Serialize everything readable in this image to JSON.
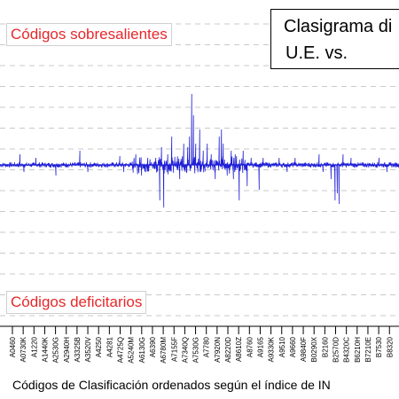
{
  "chart_data": {
    "type": "line",
    "title_lines": [
      "Clasigrama di",
      "U.E.   vs."
    ],
    "annotations": [
      "Códigos sobresalientes",
      "Códigos deficitarios"
    ],
    "xlabel": "Códigos de Clasificación ordenados según el índice de IN",
    "x_tick_labels": [
      "A0460",
      "A0730K",
      "A1220",
      "A1440K",
      "A2530G",
      "A2940H",
      "A3325B",
      "A3520V",
      "A4250",
      "A4281",
      "A4725Q",
      "A5240M",
      "A6130G",
      "A6390",
      "A6780M",
      "A7155F",
      "A7340Q",
      "A7530G",
      "A7780",
      "A7920N",
      "A8220D",
      "A8610Z",
      "A8760",
      "A9165",
      "A9330K",
      "A9510",
      "A9660",
      "A9840F",
      "B0290X",
      "B2160",
      "B2570D",
      "B4320C",
      "B6210H",
      "B7210E",
      "B7530",
      "B8320"
    ],
    "grid": true,
    "series_color": "#1f1fd6",
    "signal": {
      "baseline": 0,
      "noise": 1.5,
      "spikes": [
        [
          0.05,
          3
        ],
        [
          0.06,
          -2
        ],
        [
          0.09,
          2
        ],
        [
          0.14,
          -3
        ],
        [
          0.2,
          4
        ],
        [
          0.22,
          -2
        ],
        [
          0.3,
          2.5
        ],
        [
          0.31,
          -2
        ],
        [
          0.34,
          3
        ],
        [
          0.355,
          -3
        ],
        [
          0.36,
          3
        ],
        [
          0.37,
          2
        ],
        [
          0.36,
          -4
        ],
        [
          0.39,
          2
        ],
        [
          0.4,
          -10
        ],
        [
          0.405,
          5
        ],
        [
          0.41,
          -12
        ],
        [
          0.42,
          3
        ],
        [
          0.43,
          8
        ],
        [
          0.45,
          -4
        ],
        [
          0.46,
          6
        ],
        [
          0.47,
          5
        ],
        [
          0.475,
          8
        ],
        [
          0.48,
          20
        ],
        [
          0.485,
          14
        ],
        [
          0.49,
          6
        ],
        [
          0.5,
          10
        ],
        [
          0.51,
          4
        ],
        [
          0.52,
          6
        ],
        [
          0.53,
          3
        ],
        [
          0.54,
          -4
        ],
        [
          0.55,
          8
        ],
        [
          0.555,
          10
        ],
        [
          0.56,
          6
        ],
        [
          0.57,
          -3
        ],
        [
          0.58,
          4
        ],
        [
          0.585,
          -4
        ],
        [
          0.59,
          3
        ],
        [
          0.6,
          -10
        ],
        [
          0.61,
          4
        ],
        [
          0.62,
          -6
        ],
        [
          0.63,
          2
        ],
        [
          0.65,
          -7
        ],
        [
          0.66,
          2
        ],
        [
          0.7,
          2
        ],
        [
          0.72,
          -2
        ],
        [
          0.74,
          2
        ],
        [
          0.8,
          3
        ],
        [
          0.81,
          -2
        ],
        [
          0.83,
          -4
        ],
        [
          0.84,
          -10
        ],
        [
          0.845,
          -8
        ],
        [
          0.85,
          -11
        ],
        [
          0.86,
          3
        ],
        [
          0.88,
          2
        ],
        [
          0.95,
          2
        ],
        [
          0.97,
          -2
        ]
      ]
    }
  }
}
